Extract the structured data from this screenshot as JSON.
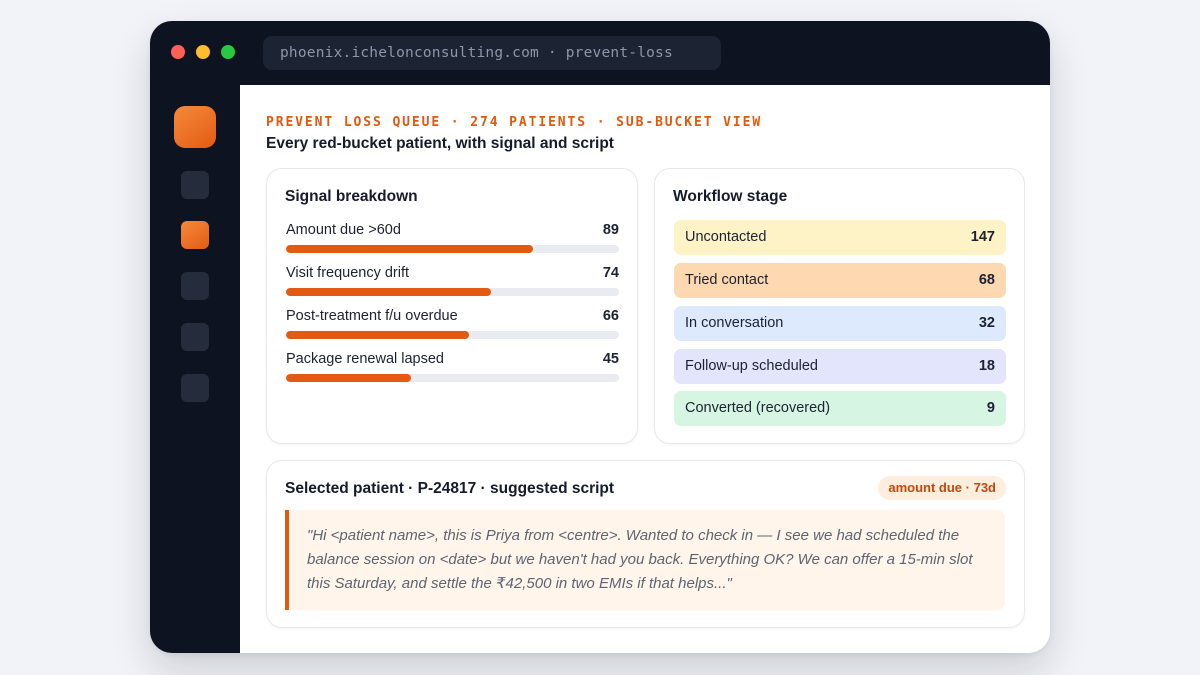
{
  "browser": {
    "url": "phoenix.ichelonconsulting.com · prevent-loss"
  },
  "header": {
    "eyebrow": "PREVENT LOSS QUEUE · 274 PATIENTS · SUB-BUCKET VIEW",
    "subtitle": "Every red-bucket patient, with signal and script"
  },
  "signal_breakdown": {
    "title": "Signal breakdown",
    "max": 120,
    "items": [
      {
        "label": "Amount due >60d",
        "value": 89
      },
      {
        "label": "Visit frequency drift",
        "value": 74
      },
      {
        "label": "Post-treatment f/u overdue",
        "value": 66
      },
      {
        "label": "Package renewal lapsed",
        "value": 45
      }
    ]
  },
  "workflow_stage": {
    "title": "Workflow stage",
    "items": [
      {
        "label": "Uncontacted",
        "value": "147",
        "color": "#fdf3c6"
      },
      {
        "label": "Tried contact",
        "value": "68",
        "color": "#fdd8b0"
      },
      {
        "label": "In conversation",
        "value": "32",
        "color": "#dde9fd"
      },
      {
        "label": "Follow-up scheduled",
        "value": "18",
        "color": "#e3e5fd"
      },
      {
        "label": "Converted (recovered)",
        "value": "9",
        "color": "#d6f6e3"
      }
    ]
  },
  "selected_patient": {
    "title": "Selected patient · P-24817 · suggested script",
    "badge": "amount due · 73d",
    "script": "\"Hi <patient name>, this is Priya from <centre>. Wanted to check in — I see we had scheduled the balance session on <date> but we haven't had you back. Everything OK? We can offer a 15-min slot this Saturday, and settle the ₹42,500 in two EMIs if that helps...\""
  },
  "colors": {
    "accent": "#e35b12",
    "chrome": "#0e1322"
  }
}
